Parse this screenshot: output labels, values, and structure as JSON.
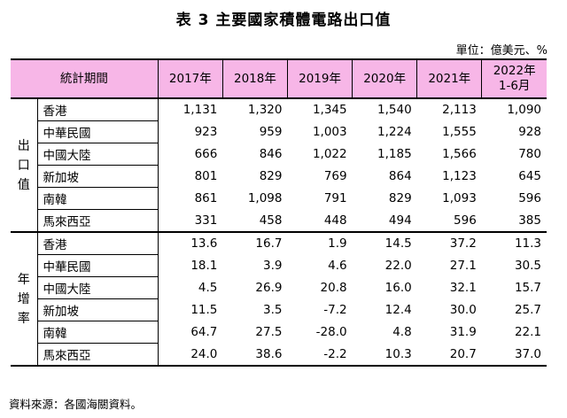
{
  "title": "表 3  主要國家積體電路出口值",
  "unit": "單位：億美元、%",
  "header": {
    "corner": "統計期間",
    "years": [
      "2017年",
      "2018年",
      "2019年",
      "2020年",
      "2021年"
    ],
    "last_line1": "2022年",
    "last_line2": "1-6月"
  },
  "sections": [
    {
      "label": [
        "出",
        "口",
        "值"
      ],
      "rows": [
        {
          "name": "香港",
          "values": [
            "1,131",
            "1,320",
            "1,345",
            "1,540",
            "2,113",
            "1,090"
          ]
        },
        {
          "name": "中華民國",
          "values": [
            "923",
            "959",
            "1,003",
            "1,224",
            "1,555",
            "928"
          ]
        },
        {
          "name": "中國大陸",
          "values": [
            "666",
            "846",
            "1,022",
            "1,185",
            "1,566",
            "780"
          ]
        },
        {
          "name": "新加坡",
          "values": [
            "801",
            "829",
            "769",
            "864",
            "1,123",
            "645"
          ]
        },
        {
          "name": "南韓",
          "values": [
            "861",
            "1,098",
            "791",
            "829",
            "1,093",
            "596"
          ]
        },
        {
          "name": "馬來西亞",
          "values": [
            "331",
            "458",
            "448",
            "494",
            "596",
            "385"
          ]
        }
      ]
    },
    {
      "label": [
        "年",
        "增",
        "率"
      ],
      "rows": [
        {
          "name": "香港",
          "values": [
            "13.6",
            "16.7",
            "1.9",
            "14.5",
            "37.2",
            "11.3"
          ]
        },
        {
          "name": "中華民國",
          "values": [
            "18.1",
            "3.9",
            "4.6",
            "22.0",
            "27.1",
            "30.5"
          ]
        },
        {
          "name": "中國大陸",
          "values": [
            "4.5",
            "26.9",
            "20.8",
            "16.0",
            "32.1",
            "15.7"
          ]
        },
        {
          "name": "新加坡",
          "values": [
            "11.5",
            "3.5",
            "-7.2",
            "12.4",
            "30.0",
            "25.7"
          ]
        },
        {
          "name": "南韓",
          "values": [
            "64.7",
            "27.5",
            "-28.0",
            "4.8",
            "31.9",
            "22.1"
          ]
        },
        {
          "name": "馬來西亞",
          "values": [
            "24.0",
            "38.6",
            "-2.2",
            "10.3",
            "20.7",
            "37.0"
          ]
        }
      ]
    }
  ],
  "source": "資料來源：各國海關資料。"
}
